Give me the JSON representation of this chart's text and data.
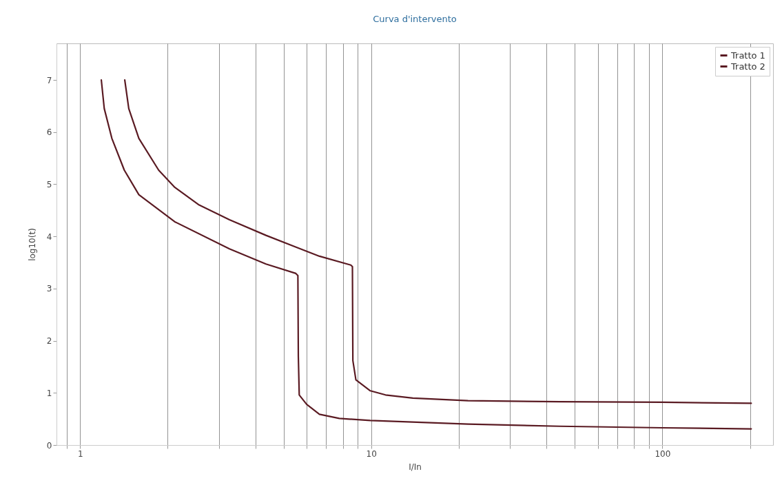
{
  "chart_data": {
    "type": "line",
    "title": "Curva d'intervento",
    "xlabel": "I/In",
    "ylabel": "log10(t)",
    "log": "x",
    "xlim": [
      0.83,
      240
    ],
    "ylim": [
      0,
      7.7
    ],
    "xticks": [
      {
        "value": 0.9,
        "label": null
      },
      1,
      {
        "value": 2,
        "label": null
      },
      {
        "value": 3,
        "label": null
      },
      {
        "value": 4,
        "label": null
      },
      {
        "value": 5,
        "label": null
      },
      {
        "value": 6,
        "label": null
      },
      {
        "value": 7,
        "label": null
      },
      {
        "value": 8,
        "label": null
      },
      {
        "value": 9,
        "label": null
      },
      10,
      {
        "value": 20,
        "label": null
      },
      {
        "value": 30,
        "label": null
      },
      {
        "value": 40,
        "label": null
      },
      {
        "value": 50,
        "label": null
      },
      {
        "value": 60,
        "label": null
      },
      {
        "value": 70,
        "label": null
      },
      {
        "value": 80,
        "label": null
      },
      {
        "value": 90,
        "label": null
      },
      100,
      {
        "value": 200,
        "label": null
      }
    ],
    "yticks": [
      0,
      1,
      2,
      3,
      4,
      5,
      6,
      7
    ],
    "grid": "x",
    "legend": "top right",
    "series": [
      {
        "name": "Tratto 1",
        "color": "#5a1a22",
        "x": [
          1.183,
          1.211,
          1.286,
          1.419,
          1.592,
          2.115,
          3.26,
          4.35,
          5.51,
          5.6,
          5.62,
          5.66,
          6.0,
          6.64,
          7.77,
          9.93,
          21.5,
          44.4,
          100,
          202
        ],
        "values": [
          7.0,
          6.45,
          5.88,
          5.27,
          4.8,
          4.28,
          3.76,
          3.47,
          3.29,
          3.25,
          1.7,
          0.96,
          0.78,
          0.59,
          0.51,
          0.47,
          0.4,
          0.36,
          0.33,
          0.31
        ]
      },
      {
        "name": "Tratto 2",
        "color": "#5a1a22",
        "x": [
          1.424,
          1.47,
          1.592,
          1.862,
          2.115,
          2.55,
          3.26,
          4.35,
          5.48,
          6.64,
          8.51,
          8.62,
          8.65,
          8.86,
          9.93,
          11.2,
          13.9,
          21.5,
          44.4,
          100,
          202
        ],
        "values": [
          7.0,
          6.45,
          5.88,
          5.27,
          4.94,
          4.61,
          4.32,
          4.02,
          3.8,
          3.62,
          3.45,
          3.42,
          1.62,
          1.25,
          1.04,
          0.96,
          0.9,
          0.85,
          0.83,
          0.82,
          0.8
        ]
      }
    ]
  }
}
